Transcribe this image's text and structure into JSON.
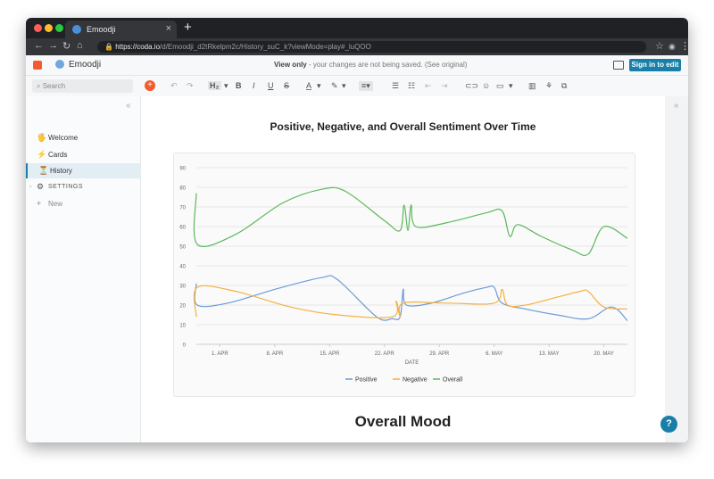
{
  "browser": {
    "tab_title": "Emoodji",
    "tab_close": "×",
    "new_tab": "+",
    "url_host": "https://coda.io",
    "url_path": "/d/Emoodji_d2tRkelpm2c/History_suC_k?viewMode=play#_luQOO",
    "colors": {
      "close": "#ff5f57",
      "min": "#febc2e",
      "max": "#28c840"
    }
  },
  "app": {
    "doc_title": "Emoodji",
    "view_only_label": "View only",
    "view_only_note": " - your changes are not being saved. (See original)",
    "sign_in_label": "Sign in to edit",
    "accent": "#1a7fa8"
  },
  "toolbar": {
    "search_placeholder": "Search",
    "heading_label": "H₂",
    "bold": "B",
    "italic": "I",
    "underline": "U",
    "strike": "S",
    "text_color": "A"
  },
  "sidebar": {
    "items": [
      {
        "icon": "🖐",
        "label": "Welcome"
      },
      {
        "icon": "⚡",
        "label": "Cards"
      },
      {
        "icon": "⏳",
        "label": "History"
      },
      {
        "icon": "⚙",
        "label": "SETTINGS"
      },
      {
        "icon": "+",
        "label": "New"
      }
    ]
  },
  "page": {
    "mood_heading": "Overall Mood",
    "help_label": "?"
  },
  "chart_data": {
    "type": "line",
    "title": "Positive, Negative, and Overall Sentiment Over Time",
    "xlabel": "DATE",
    "ylabel": "",
    "ylim": [
      0,
      90
    ],
    "yticks": [
      "0",
      "10",
      "20",
      "30",
      "40",
      "50",
      "60",
      "70",
      "80",
      "90"
    ],
    "xticks": [
      "1. APR",
      "8. APR",
      "15. APR",
      "22. APR",
      "29. APR",
      "6. MAY",
      "13. MAY",
      "20. MAY"
    ],
    "xtick_days": [
      31,
      38,
      45,
      52,
      59,
      66,
      73,
      80
    ],
    "xlim": [
      28,
      83
    ],
    "series": [
      {
        "name": "Positive",
        "color": "#6a9bd8",
        "points": [
          [
            28,
            31
          ],
          [
            28.1,
            20
          ],
          [
            32,
            21
          ],
          [
            38,
            28
          ],
          [
            44,
            34
          ],
          [
            46,
            33
          ],
          [
            51,
            14
          ],
          [
            53,
            13
          ],
          [
            54,
            14
          ],
          [
            54.4,
            28
          ],
          [
            54.8,
            20
          ],
          [
            58,
            21
          ],
          [
            62,
            26
          ],
          [
            65,
            29
          ],
          [
            66,
            29
          ],
          [
            67,
            21
          ],
          [
            70,
            18
          ],
          [
            74,
            15
          ],
          [
            78,
            13
          ],
          [
            81,
            19
          ],
          [
            83,
            12
          ]
        ]
      },
      {
        "name": "Negative",
        "color": "#f5b041",
        "points": [
          [
            28,
            14
          ],
          [
            28.1,
            29
          ],
          [
            33,
            27
          ],
          [
            40,
            19
          ],
          [
            46,
            15
          ],
          [
            53,
            14
          ],
          [
            53.5,
            22
          ],
          [
            54,
            14
          ],
          [
            54.4,
            21
          ],
          [
            60,
            21
          ],
          [
            66,
            21
          ],
          [
            67,
            28
          ],
          [
            67.7,
            20
          ],
          [
            70,
            20
          ],
          [
            74,
            24
          ],
          [
            77,
            27
          ],
          [
            78,
            27
          ],
          [
            80,
            19
          ],
          [
            83,
            18
          ]
        ]
      },
      {
        "name": "Overall",
        "color": "#5cb85c",
        "points": [
          [
            28,
            77
          ],
          [
            28.1,
            51
          ],
          [
            33,
            56
          ],
          [
            39,
            72
          ],
          [
            44,
            79
          ],
          [
            47,
            78
          ],
          [
            52,
            63
          ],
          [
            54,
            58
          ],
          [
            54.5,
            71
          ],
          [
            55,
            58
          ],
          [
            55.4,
            71
          ],
          [
            56,
            60
          ],
          [
            60,
            62
          ],
          [
            65,
            67
          ],
          [
            67,
            68
          ],
          [
            68,
            55
          ],
          [
            69,
            61
          ],
          [
            72,
            55
          ],
          [
            76,
            48
          ],
          [
            78,
            46
          ],
          [
            80,
            60
          ],
          [
            83,
            54
          ]
        ]
      }
    ]
  }
}
